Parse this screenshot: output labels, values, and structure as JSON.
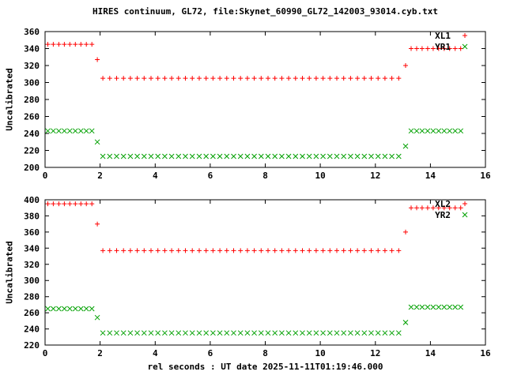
{
  "title": "HIRES continuum, GL72, file:Skynet_60990_GL72_142003_93014.cyb.txt",
  "xlabel": "rel seconds : UT date 2025-11-11T01:19:46.000",
  "colors": {
    "red": "#ff0000",
    "green": "#00a000",
    "axis": "#000000",
    "background": "#ffffff"
  },
  "chart_data": [
    {
      "type": "scatter",
      "panel": "top",
      "ylabel": "Uncalibrated",
      "xlim": [
        0,
        16
      ],
      "xtick_step": 2,
      "ylim": [
        200,
        360
      ],
      "ytick_step": 20,
      "grid": false,
      "legend_position": "top-right",
      "legend": [
        {
          "label": "XL1",
          "marker": "plus",
          "color": "#ff0000"
        },
        {
          "label": "YR1",
          "marker": "cross",
          "color": "#00a000"
        }
      ],
      "x": [
        0.1,
        0.3,
        0.5,
        0.7,
        0.9,
        1.1,
        1.3,
        1.5,
        1.7,
        1.9,
        2.1,
        2.35,
        2.6,
        2.85,
        3.1,
        3.35,
        3.6,
        3.85,
        4.1,
        4.35,
        4.6,
        4.85,
        5.1,
        5.35,
        5.6,
        5.85,
        6.1,
        6.35,
        6.6,
        6.85,
        7.1,
        7.35,
        7.6,
        7.85,
        8.1,
        8.35,
        8.6,
        8.85,
        9.1,
        9.35,
        9.6,
        9.85,
        10.1,
        10.35,
        10.6,
        10.85,
        11.1,
        11.35,
        11.6,
        11.85,
        12.1,
        12.35,
        12.6,
        12.85,
        13.1,
        13.3,
        13.5,
        13.7,
        13.9,
        14.1,
        14.3,
        14.5,
        14.7,
        14.9,
        15.1
      ],
      "series": [
        {
          "name": "XL1",
          "marker": "plus",
          "color": "#ff0000",
          "values": [
            345,
            345,
            345,
            345,
            345,
            345,
            345,
            345,
            345,
            327,
            305,
            305,
            305,
            305,
            305,
            305,
            305,
            305,
            305,
            305,
            305,
            305,
            305,
            305,
            305,
            305,
            305,
            305,
            305,
            305,
            305,
            305,
            305,
            305,
            305,
            305,
            305,
            305,
            305,
            305,
            305,
            305,
            305,
            305,
            305,
            305,
            305,
            305,
            305,
            305,
            305,
            305,
            305,
            305,
            320,
            340,
            340,
            340,
            340,
            340,
            340,
            340,
            340,
            340,
            340
          ]
        },
        {
          "name": "YR1",
          "marker": "cross",
          "color": "#00a000",
          "values": [
            243,
            243,
            243,
            243,
            243,
            243,
            243,
            243,
            243,
            230,
            213,
            213,
            213,
            213,
            213,
            213,
            213,
            213,
            213,
            213,
            213,
            213,
            213,
            213,
            213,
            213,
            213,
            213,
            213,
            213,
            213,
            213,
            213,
            213,
            213,
            213,
            213,
            213,
            213,
            213,
            213,
            213,
            213,
            213,
            213,
            213,
            213,
            213,
            213,
            213,
            213,
            213,
            213,
            213,
            225,
            243,
            243,
            243,
            243,
            243,
            243,
            243,
            243,
            243,
            243
          ]
        }
      ]
    },
    {
      "type": "scatter",
      "panel": "bottom",
      "ylabel": "Uncalibrated",
      "xlim": [
        0,
        16
      ],
      "xtick_step": 2,
      "ylim": [
        220,
        400
      ],
      "ytick_step": 20,
      "grid": false,
      "legend_position": "top-right",
      "legend": [
        {
          "label": "XL2",
          "marker": "plus",
          "color": "#ff0000"
        },
        {
          "label": "YR2",
          "marker": "cross",
          "color": "#00a000"
        }
      ],
      "x": [
        0.1,
        0.3,
        0.5,
        0.7,
        0.9,
        1.1,
        1.3,
        1.5,
        1.7,
        1.9,
        2.1,
        2.35,
        2.6,
        2.85,
        3.1,
        3.35,
        3.6,
        3.85,
        4.1,
        4.35,
        4.6,
        4.85,
        5.1,
        5.35,
        5.6,
        5.85,
        6.1,
        6.35,
        6.6,
        6.85,
        7.1,
        7.35,
        7.6,
        7.85,
        8.1,
        8.35,
        8.6,
        8.85,
        9.1,
        9.35,
        9.6,
        9.85,
        10.1,
        10.35,
        10.6,
        10.85,
        11.1,
        11.35,
        11.6,
        11.85,
        12.1,
        12.35,
        12.6,
        12.85,
        13.1,
        13.3,
        13.5,
        13.7,
        13.9,
        14.1,
        14.3,
        14.5,
        14.7,
        14.9,
        15.1
      ],
      "series": [
        {
          "name": "XL2",
          "marker": "plus",
          "color": "#ff0000",
          "values": [
            395,
            395,
            395,
            395,
            395,
            395,
            395,
            395,
            395,
            370,
            337,
            337,
            337,
            337,
            337,
            337,
            337,
            337,
            337,
            337,
            337,
            337,
            337,
            337,
            337,
            337,
            337,
            337,
            337,
            337,
            337,
            337,
            337,
            337,
            337,
            337,
            337,
            337,
            337,
            337,
            337,
            337,
            337,
            337,
            337,
            337,
            337,
            337,
            337,
            337,
            337,
            337,
            337,
            337,
            360,
            390,
            390,
            390,
            390,
            390,
            390,
            390,
            390,
            390,
            390
          ]
        },
        {
          "name": "YR2",
          "marker": "cross",
          "color": "#00a000",
          "values": [
            265,
            265,
            265,
            265,
            265,
            265,
            265,
            265,
            265,
            254,
            235,
            235,
            235,
            235,
            235,
            235,
            235,
            235,
            235,
            235,
            235,
            235,
            235,
            235,
            235,
            235,
            235,
            235,
            235,
            235,
            235,
            235,
            235,
            235,
            235,
            235,
            235,
            235,
            235,
            235,
            235,
            235,
            235,
            235,
            235,
            235,
            235,
            235,
            235,
            235,
            235,
            235,
            235,
            235,
            248,
            267,
            267,
            267,
            267,
            267,
            267,
            267,
            267,
            267,
            267
          ]
        }
      ]
    }
  ]
}
